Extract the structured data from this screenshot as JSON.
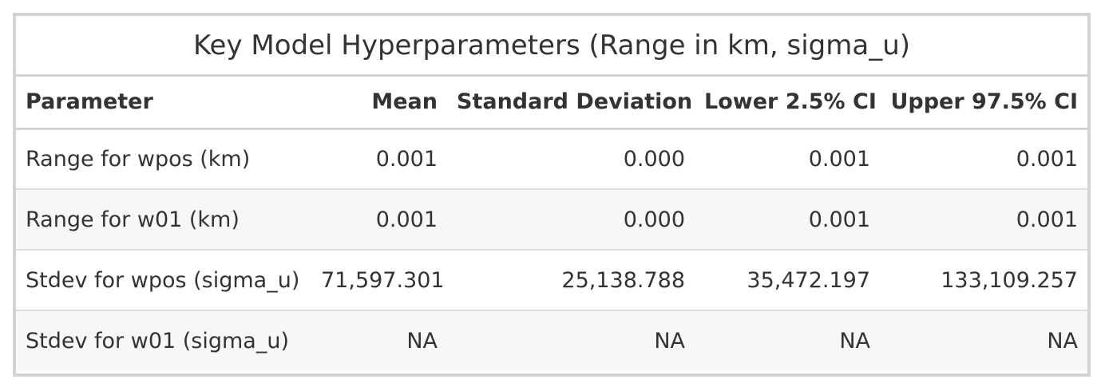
{
  "table": {
    "caption": "Key Model Hyperparameters (Range in km, sigma_u)",
    "headers": [
      "Parameter",
      "Mean",
      "Standard Deviation",
      "Lower 2.5% CI",
      "Upper 97.5% CI"
    ],
    "rows": [
      [
        "Range for wpos (km)",
        "0.001",
        "0.000",
        "0.001",
        "0.001"
      ],
      [
        "Range for w01 (km)",
        "0.001",
        "0.000",
        "0.001",
        "0.001"
      ],
      [
        "Stdev for wpos (sigma_u)",
        "71,597.301",
        "25,138.788",
        "35,472.197",
        "133,109.257"
      ],
      [
        "Stdev for w01 (sigma_u)",
        "NA",
        "NA",
        "NA",
        "NA"
      ]
    ]
  }
}
